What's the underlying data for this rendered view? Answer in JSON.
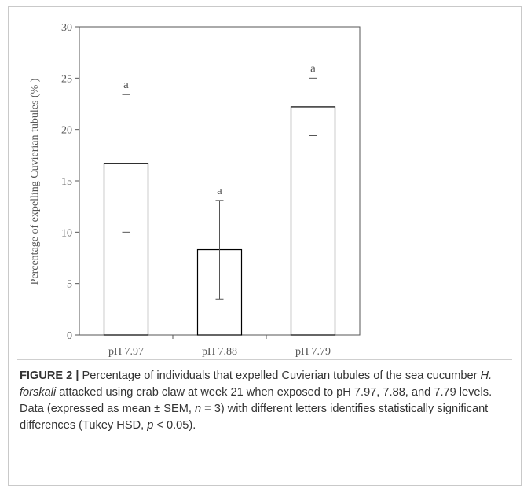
{
  "chart_data": {
    "type": "bar",
    "categories": [
      "pH 7.97",
      "pH 7.88",
      "pH 7.79"
    ],
    "values": [
      16.7,
      8.3,
      22.2
    ],
    "errors": [
      6.7,
      4.8,
      2.8
    ],
    "significance_letters": [
      "a",
      "a",
      "a"
    ],
    "ylabel": "Percentage of expelling Cuvierian tubules (% )",
    "ylim": [
      0,
      30
    ],
    "yticks": [
      0,
      5,
      10,
      15,
      20,
      25,
      30
    ],
    "grid": false,
    "bar_fill": "#ffffff",
    "bar_stroke": "#000000",
    "axis_color": "#555555"
  },
  "caption": {
    "label": "FIGURE 2 |",
    "part1": " Percentage of individuals that expelled Cuvierian tubules of the sea cucumber ",
    "species": "H. forskali",
    "part2": " attacked using crab claw at week 21 when exposed to pH 7.97, 7.88, and 7.79 levels. Data (expressed as mean ± SEM, ",
    "n_symbol": "n",
    "part3": " = 3) with different letters identifies statistically significant differences (Tukey HSD, ",
    "p_symbol": "p",
    "part4": " < 0.05)."
  }
}
